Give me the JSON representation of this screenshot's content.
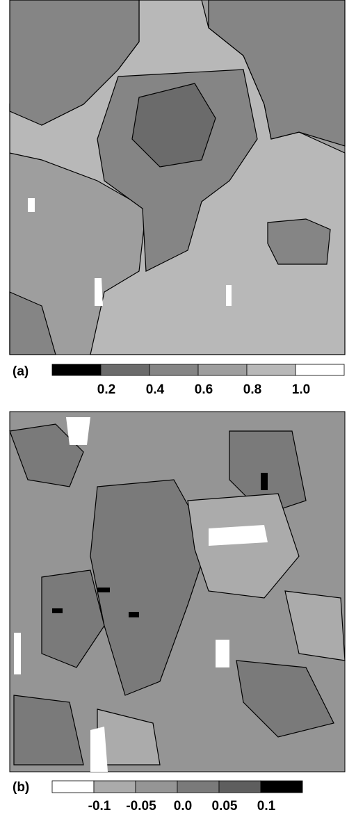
{
  "panels": [
    {
      "label": "(a)",
      "colorbar": {
        "colors": [
          "#000000",
          "#6b6b6b",
          "#858585",
          "#9e9e9e",
          "#b8b8b8",
          "#ffffff"
        ],
        "labels": [
          "0.2",
          "0.4",
          "0.6",
          "0.8",
          "1.0"
        ]
      }
    },
    {
      "label": "(b)",
      "colorbar": {
        "colors": [
          "#ffffff",
          "#ababab",
          "#959595",
          "#7a7a7a",
          "#5e5e5e",
          "#000000"
        ],
        "labels": [
          "-0.1",
          "-0.05",
          "0.0",
          "0.05",
          "0.1"
        ]
      }
    }
  ]
}
